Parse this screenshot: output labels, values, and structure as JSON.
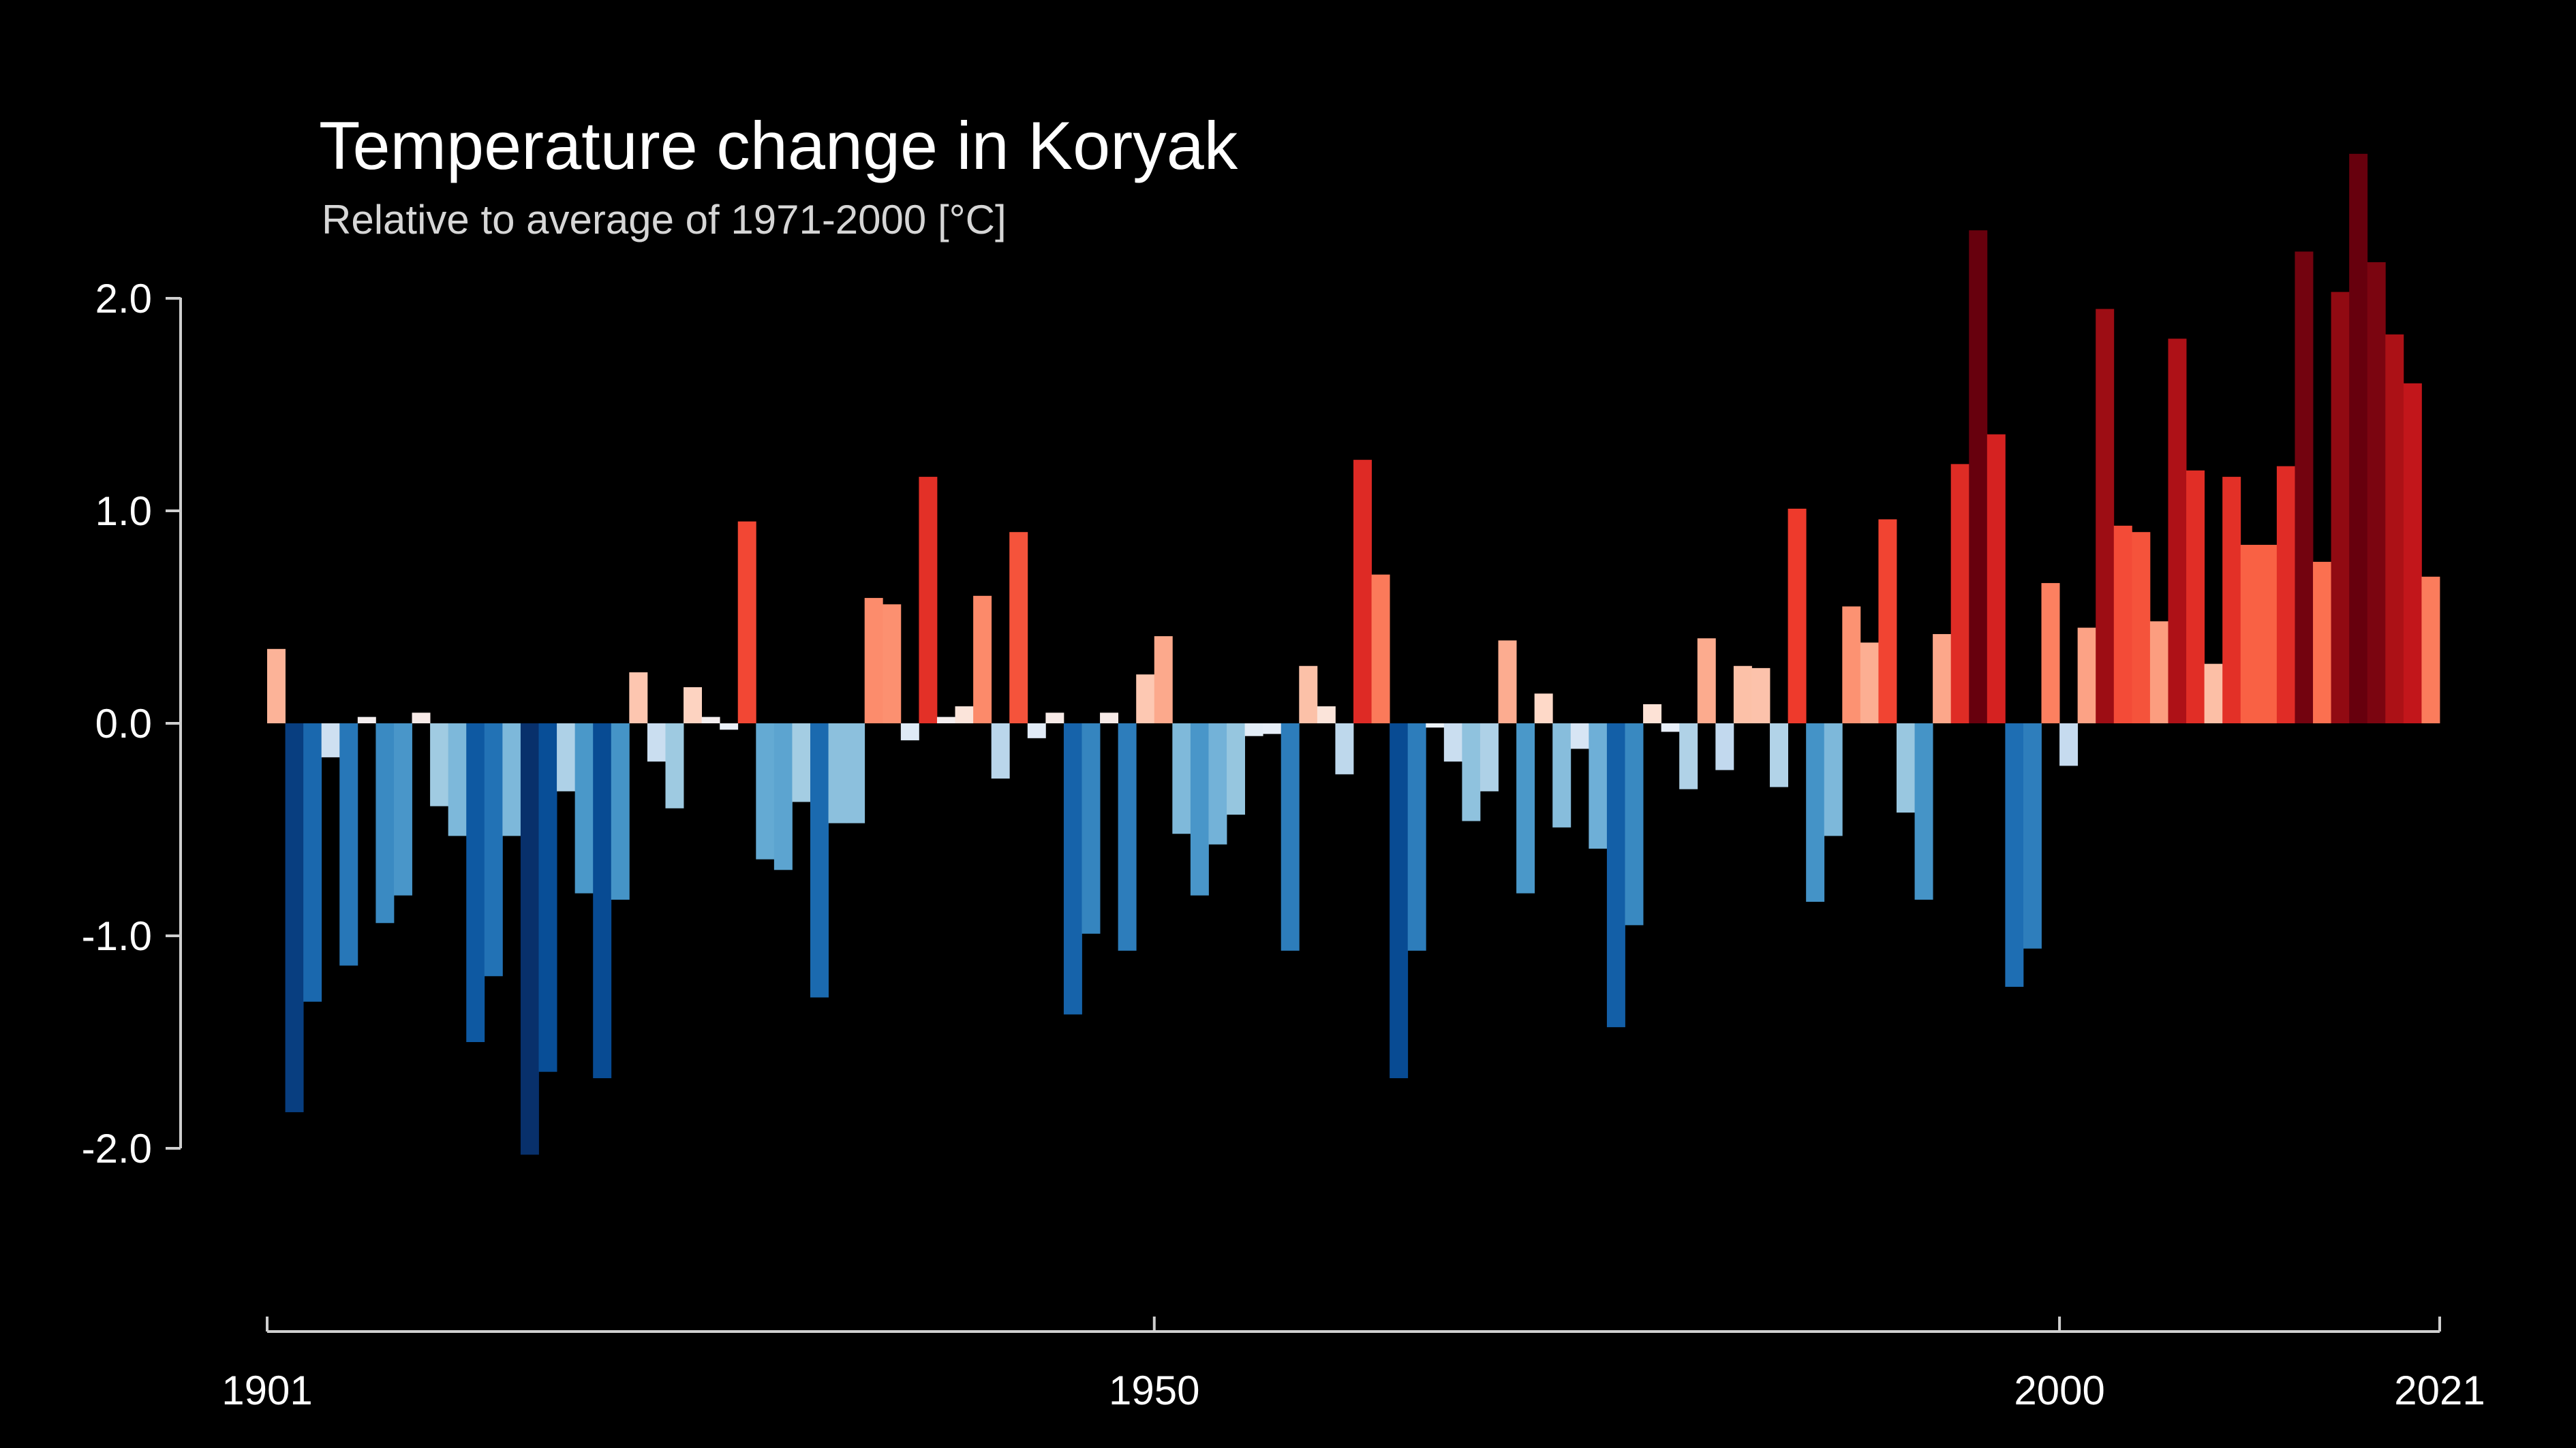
{
  "chart_data": {
    "type": "bar",
    "title": "Temperature change in Koryak",
    "subtitle": "Relative to average of 1971-2000  [°C]",
    "xlabel": "",
    "ylabel": "",
    "x_start": 1901,
    "x_end": 2021,
    "xlim": [
      1901,
      2021
    ],
    "ylim": [
      -2.6,
      2.7
    ],
    "y_ticks": [
      2.0,
      1.0,
      0.0,
      -1.0,
      -2.0
    ],
    "y_tick_labels": [
      "2.0",
      "1.0",
      "0.0",
      "-1.0",
      "-2.0"
    ],
    "x_ticks": [
      1901,
      1950,
      2000,
      2021
    ],
    "x_tick_labels": [
      "1901",
      "1950",
      "2000",
      "2021"
    ],
    "grid": false,
    "legend": "none",
    "color_scale": "diverging blue-red (warming stripes)",
    "values": [
      0.35,
      -1.83,
      -1.31,
      -0.16,
      -1.14,
      0.03,
      -0.94,
      -0.81,
      0.05,
      -0.39,
      -0.53,
      -1.5,
      -1.19,
      -0.53,
      -2.03,
      -1.64,
      -0.32,
      -0.8,
      -1.67,
      -0.83,
      0.24,
      -0.18,
      -0.4,
      0.17,
      0.03,
      -0.03,
      0.95,
      -0.64,
      -0.69,
      -0.37,
      -1.29,
      -0.47,
      -0.47,
      0.59,
      0.56,
      -0.08,
      1.16,
      0.03,
      0.08,
      0.6,
      -0.26,
      0.9,
      -0.07,
      0.05,
      -1.37,
      -0.99,
      0.05,
      -1.07,
      0.23,
      0.41,
      -0.52,
      -0.81,
      -0.57,
      -0.43,
      -0.06,
      -0.05,
      -1.07,
      0.27,
      0.08,
      -0.24,
      1.24,
      0.7,
      -1.67,
      -1.07,
      -0.02,
      -0.18,
      -0.46,
      -0.32,
      0.39,
      -0.8,
      0.14,
      -0.49,
      -0.12,
      -0.59,
      -1.43,
      -0.95,
      0.09,
      -0.04,
      -0.31,
      0.4,
      -0.22,
      0.27,
      0.26,
      -0.3,
      1.01,
      -0.84,
      -0.53,
      0.55,
      0.38,
      0.96,
      -0.42,
      -0.83,
      0.42,
      1.22,
      2.32,
      1.36,
      -1.24,
      -1.06,
      0.66,
      -0.2,
      0.45,
      1.95,
      0.93,
      0.9,
      0.48,
      1.81,
      1.19,
      0.28,
      1.16,
      0.84,
      0.84,
      1.21,
      2.22,
      0.76,
      2.03,
      2.68,
      2.17,
      1.83,
      1.6,
      0.69
    ],
    "colors": {
      "background": "#000000",
      "axis": "#cfcfcf",
      "text": "#ffffff",
      "subtitle_text": "#d6d6d6",
      "scale_stops": [
        [
          -2.0,
          "#08306b"
        ],
        [
          -1.6,
          "#08519c"
        ],
        [
          -1.2,
          "#2171b5"
        ],
        [
          -0.85,
          "#4292c6"
        ],
        [
          -0.6,
          "#6baed6"
        ],
        [
          -0.4,
          "#9ecae1"
        ],
        [
          -0.2,
          "#c6dbef"
        ],
        [
          0.0,
          "#f0f4fb"
        ],
        [
          0.1,
          "#fee0d2"
        ],
        [
          0.3,
          "#fcbba1"
        ],
        [
          0.55,
          "#fc9272"
        ],
        [
          0.8,
          "#fb6a4a"
        ],
        [
          1.0,
          "#ef3b2c"
        ],
        [
          1.5,
          "#cb181d"
        ],
        [
          1.9,
          "#a50f15"
        ],
        [
          2.3,
          "#67000d"
        ]
      ]
    }
  }
}
